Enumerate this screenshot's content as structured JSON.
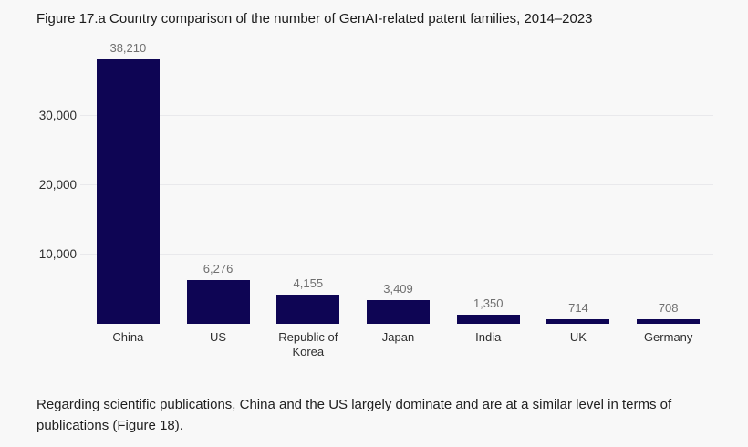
{
  "figure": {
    "title": "Figure 17.a Country comparison of the number of GenAI-related patent families, 2014–2023",
    "footnote": "Regarding scientific publications, China and the US largely dominate and are at a similar level in terms of publications (Figure 18)."
  },
  "chart_data": {
    "type": "bar",
    "title": "Figure 17.a Country comparison of the number of GenAI-related patent families, 2014–2023",
    "categories": [
      "China",
      "US",
      "Republic of Korea",
      "Japan",
      "India",
      "UK",
      "Germany"
    ],
    "values": [
      38210,
      6276,
      4155,
      3409,
      1350,
      714,
      708
    ],
    "value_labels": [
      "38,210",
      "6,276",
      "4,155",
      "3,409",
      "1,350",
      "714",
      "708"
    ],
    "yticks": [
      10000,
      20000,
      30000
    ],
    "ytick_labels": [
      "10,000",
      "20,000",
      "30,000"
    ],
    "ylim": [
      0,
      41500
    ],
    "xlabel": "",
    "ylabel": "",
    "grid": true,
    "legend": false,
    "bar_color": "#0e0554",
    "value_label_color": "#6f6f6f",
    "background": "#f8f8f8"
  }
}
